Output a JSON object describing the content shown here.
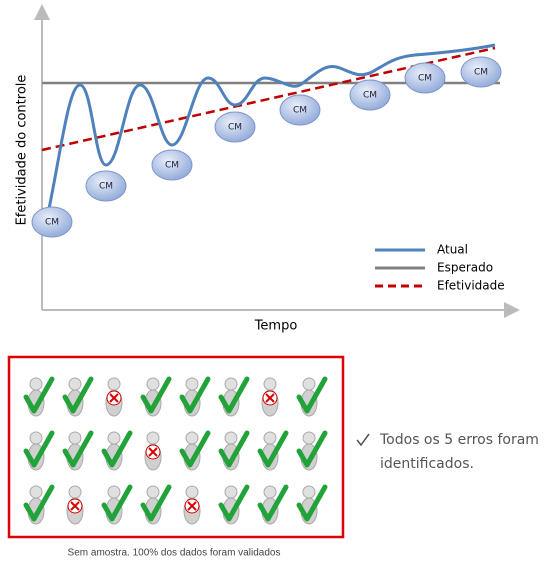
{
  "chart": {
    "y_axis_label": "Efetividade do controle",
    "x_axis_label": "Tempo",
    "legend": [
      "Atual",
      "Esperado",
      "Efetividade"
    ],
    "cm_labels": [
      "CM",
      "CM",
      "CM",
      "CM",
      "CM",
      "CM",
      "CM",
      "CM"
    ]
  },
  "note": {
    "text_lines": [
      "Todos os 5 erros foram",
      "identificados."
    ]
  },
  "caption": "Sem amostra. 100% dos dados foram validados"
}
